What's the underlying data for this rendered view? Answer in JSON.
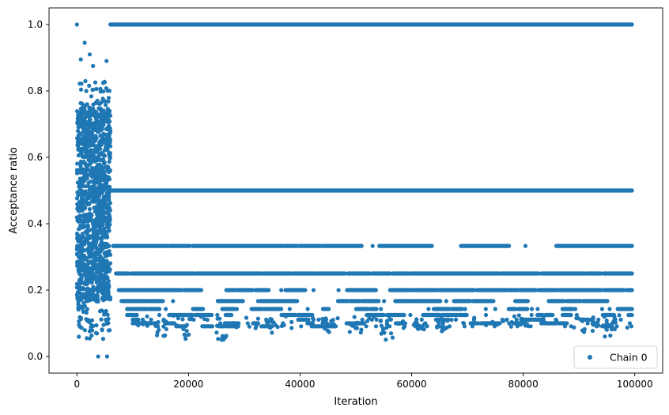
{
  "chart_data": {
    "type": "scatter",
    "title": "",
    "xlabel": "Iteration",
    "ylabel": "Acceptance ratio",
    "xlim": [
      -5000,
      105000
    ],
    "ylim": [
      -0.05,
      1.05
    ],
    "x_ticks": [
      0,
      20000,
      40000,
      60000,
      80000,
      100000
    ],
    "x_tick_labels": [
      "0",
      "20000",
      "40000",
      "60000",
      "80000",
      "100000"
    ],
    "y_ticks": [
      0.0,
      0.2,
      0.4,
      0.6,
      0.8,
      1.0
    ],
    "y_tick_labels": [
      "0.0",
      "0.2",
      "0.4",
      "0.6",
      "0.8",
      "1.0"
    ],
    "grid": false,
    "legend": {
      "position": "bottom-right",
      "entries": [
        "Chain 0"
      ]
    },
    "series": [
      {
        "name": "Chain 0",
        "color": "#1f77b4",
        "marker": "circle",
        "burn_in_end": 6000,
        "burn_in_range": [
          0.05,
          0.83
        ],
        "burn_in_outliers": [
          [
            0,
            1.0
          ],
          [
            700,
            0.895
          ],
          [
            1400,
            0.945
          ],
          [
            2300,
            0.91
          ],
          [
            2900,
            0.875
          ],
          [
            5300,
            0.89
          ],
          [
            3800,
            0.0
          ],
          [
            5400,
            0.0
          ]
        ],
        "levels": [
          {
            "y": 1.0,
            "x_range": [
              6000,
              99500
            ],
            "density": "continuous"
          },
          {
            "y": 0.5,
            "x_range": [
              6000,
              99500
            ],
            "density": "continuous"
          },
          {
            "y": 0.333,
            "x_range": [
              6500,
              99500
            ],
            "density": "dense"
          },
          {
            "y": 0.25,
            "x_range": [
              7000,
              99500
            ],
            "density": "dense"
          },
          {
            "y": 0.2,
            "x_range": [
              7500,
              99500
            ],
            "density": "frequent"
          },
          {
            "y": 0.167,
            "x_range": [
              8000,
              99500
            ],
            "density": "frequent"
          },
          {
            "y": 0.143,
            "x_range": [
              9000,
              99500
            ],
            "density": "moderate"
          },
          {
            "y": 0.125,
            "x_range": [
              9000,
              99500
            ],
            "density": "moderate"
          },
          {
            "y": 0.111,
            "x_range": [
              10000,
              99500
            ],
            "density": "sparse"
          },
          {
            "y": 0.1,
            "x_range": [
              10000,
              99500
            ],
            "density": "sparse"
          },
          {
            "y": 0.091,
            "x_range": [
              14000,
              99500
            ],
            "density": "sparse"
          }
        ],
        "low_clusters": [
          {
            "x": 15000,
            "min_y": 0.06
          },
          {
            "x": 20000,
            "min_y": 0.05
          },
          {
            "x": 26000,
            "min_y": 0.05
          },
          {
            "x": 35000,
            "min_y": 0.07
          },
          {
            "x": 45000,
            "min_y": 0.07
          },
          {
            "x": 50000,
            "min_y": 0.06
          },
          {
            "x": 55500,
            "min_y": 0.05
          },
          {
            "x": 61500,
            "min_y": 0.08
          },
          {
            "x": 65500,
            "min_y": 0.07
          },
          {
            "x": 80000,
            "min_y": 0.08
          },
          {
            "x": 91500,
            "min_y": 0.07
          },
          {
            "x": 95500,
            "min_y": 0.06
          }
        ]
      }
    ]
  }
}
